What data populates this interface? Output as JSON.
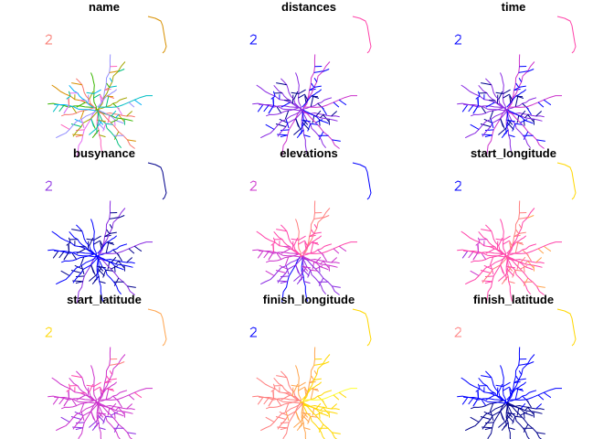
{
  "chart_data": {
    "type": "map",
    "layout": {
      "rows": 3,
      "cols": 3
    },
    "panels": [
      {
        "title": "name",
        "scale": "categorical"
      },
      {
        "title": "distances",
        "scale": "sequential"
      },
      {
        "title": "time",
        "scale": "sequential"
      },
      {
        "title": "busynance",
        "scale": "sequential"
      },
      {
        "title": "elevations",
        "scale": "sequential"
      },
      {
        "title": "start_longitude",
        "scale": "sequential"
      },
      {
        "title": "start_latitude",
        "scale": "sequential"
      },
      {
        "title": "finish_longitude",
        "scale": "sequential"
      },
      {
        "title": "finish_latitude",
        "scale": "sequential"
      }
    ],
    "palette": [
      "#00008b",
      "#0000ff",
      "#8a2be2",
      "#cc33cc",
      "#ff44aa",
      "#ff7f7f",
      "#ffa54f",
      "#ffd700",
      "#ffff33"
    ],
    "categorical_palette": [
      "#f8766d",
      "#d89000",
      "#a3a500",
      "#39b600",
      "#00bf7d",
      "#00bfc4",
      "#00b0f6",
      "#9590ff",
      "#e76bf3",
      "#ff62bc"
    ]
  }
}
